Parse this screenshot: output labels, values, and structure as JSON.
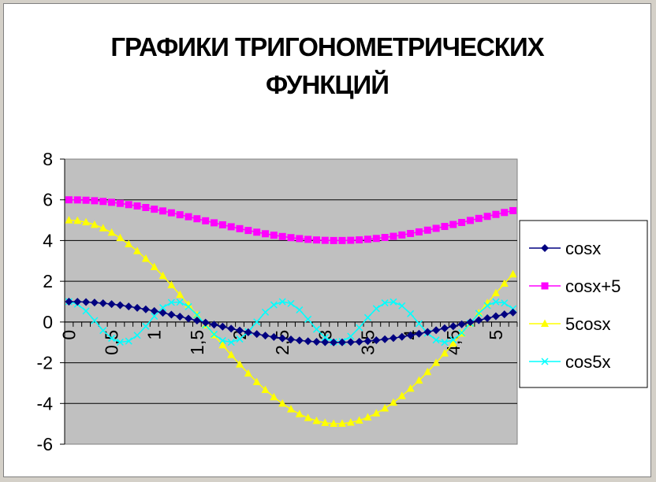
{
  "chart_data": {
    "type": "line",
    "title": "ГРАФИКИ ТРИГОНОМЕТРИЧЕСКИХ ФУНКЦИЙ",
    "title_lines": [
      "ГРАФИКИ ТРИГОНОМЕТРИЧЕСКИХ",
      "ФУНКЦИЙ"
    ],
    "xlabel": "",
    "ylabel": "",
    "ylim": [
      -6,
      8
    ],
    "yticks": [
      -6,
      -4,
      -2,
      0,
      2,
      4,
      6,
      8
    ],
    "ytick_labels": [
      "-6",
      "-4",
      "-2",
      "0",
      "2",
      "4",
      "6",
      "8"
    ],
    "x_start": 0,
    "x_step": 0.1,
    "x_count": 53,
    "xtick_labels": [
      "0",
      "0,5",
      "1",
      "1,5",
      "2",
      "2,5",
      "3",
      "3,5",
      "4",
      "4,5",
      "5"
    ],
    "xtick_values": [
      0,
      0.5,
      1,
      1.5,
      2,
      2.5,
      3,
      3.5,
      4,
      4.5,
      5
    ],
    "x_label_every": 5,
    "grid": true,
    "plot_background": "#c0c0c0",
    "legend_position": "right",
    "series": [
      {
        "name": "cosx",
        "formula": "cos(x)",
        "color": "#000080",
        "marker": "diamond"
      },
      {
        "name": "cosx+5",
        "formula": "cos(x)+5",
        "color": "#ff00ff",
        "marker": "square"
      },
      {
        "name": "5cosx",
        "formula": "5cos(x)",
        "color": "#ffff00",
        "marker": "triangle"
      },
      {
        "name": "cos5x",
        "formula": "cos(5x)",
        "color": "#00ffff",
        "marker": "x"
      }
    ]
  }
}
